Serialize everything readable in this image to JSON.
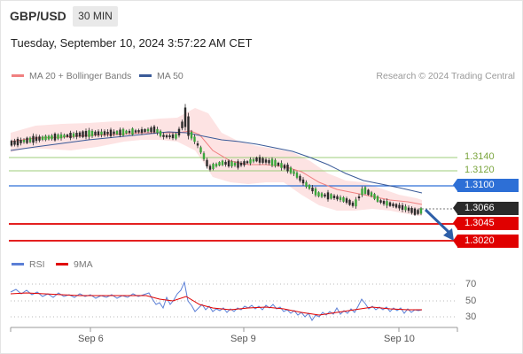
{
  "header": {
    "pair": "GBP/USD",
    "timeframe": "30 MIN",
    "timestamp": "Tuesday, September 10, 2024 3:57:22 AM CET"
  },
  "legend": {
    "ma20": "MA 20 + Bollinger Bands",
    "ma50": "MA 50",
    "credit": "Research © 2024 Trading Central"
  },
  "levels": {
    "r1": "1.3140",
    "r2": "1.3120",
    "pivot": "1.3100",
    "last": "1.3066",
    "s1": "1.3045",
    "s2": "1.3020"
  },
  "rsi": {
    "label": "RSI",
    "ma_label": "9MA",
    "ticks": [
      "70",
      "50",
      "30"
    ]
  },
  "xaxis": {
    "labels": [
      "Sep 6",
      "Sep 9",
      "Sep 10"
    ]
  },
  "colors": {
    "ma20": "#f08080",
    "bands": "#fde0e0",
    "ma50": "#3a5a98",
    "green": "#7aa53d",
    "pivot": "#2d6fd6",
    "support": "#e00000",
    "rsi": "#5b7fd6",
    "rsi_ma": "#e00000"
  }
}
